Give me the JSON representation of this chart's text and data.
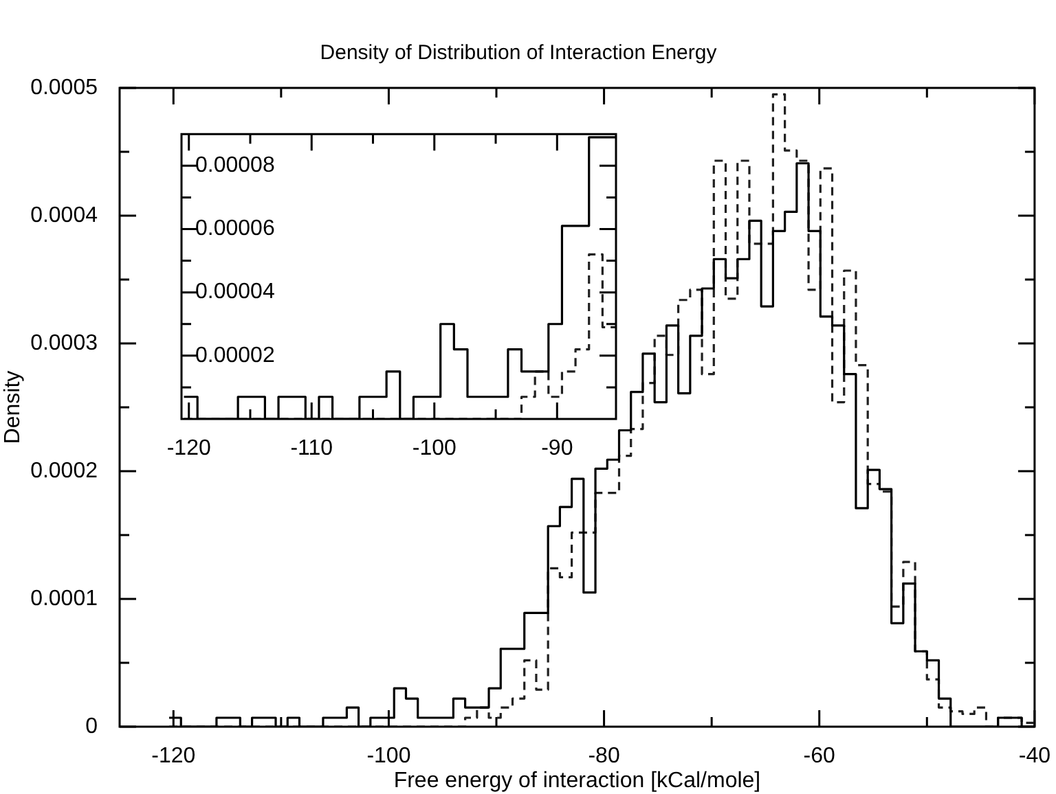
{
  "chart_data": [
    {
      "type": "histogram",
      "title": "Density of Distribution of Interaction Energy",
      "xlabel": "Free energy of interaction [kCal/mole]",
      "ylabel": "Density",
      "bins": [
        -120.4,
        -119.3,
        -118.2,
        -117.1,
        -116,
        -114.9,
        -113.8,
        -112.7,
        -111.6,
        -110.5,
        -109.4,
        -108.3,
        -107.2,
        -106.1,
        -105,
        -103.9,
        -102.8,
        -101.7,
        -100.6,
        -99.5,
        -98.4,
        -97.3,
        -96.2,
        -95.1,
        -94,
        -92.9,
        -91.8,
        -90.7,
        -89.6,
        -88.5,
        -87.4,
        -86.3,
        -85.2,
        -84.1,
        -83,
        -81.9,
        -80.8,
        -79.7,
        -78.6,
        -77.5,
        -76.4,
        -75.3,
        -74.2,
        -73.1,
        -72,
        -70.9,
        -69.8,
        -68.7,
        -67.6,
        -66.5,
        -65.4,
        -64.3,
        -63.2,
        -62.1,
        -61,
        -59.9,
        -58.8,
        -57.7,
        -56.6,
        -55.5,
        -54.4,
        -53.3,
        -52.2,
        -51.1,
        -50,
        -48.9,
        -47.8,
        -46.7,
        -45.6,
        -44.5,
        -43.4,
        -42.3,
        -41.2,
        -40.1
      ],
      "series": [
        {
          "color": "#000000",
          "line_style": "solid",
          "values": [
            7e-06,
            0,
            0,
            0,
            7e-06,
            7e-06,
            0,
            7e-06,
            7e-06,
            0,
            7e-06,
            0,
            0,
            7e-06,
            7e-06,
            1.5e-05,
            0,
            7e-06,
            7e-06,
            3e-05,
            2.2e-05,
            7e-06,
            7e-06,
            7e-06,
            2.2e-05,
            1.5e-05,
            1.5e-05,
            3e-05,
            6.1e-05,
            6.1e-05,
            8.9e-05,
            8.9e-05,
            0.000157,
            0.000172,
            0.000194,
            0.000105,
            0.000202,
            0.000209,
            0.000232,
            0.000262,
            0.000292,
            0.000254,
            0.000314,
            0.000261,
            0.000306,
            0.000343,
            0.000366,
            0.000351,
            0.000366,
            0.000396,
            0.000329,
            0.000388,
            0.000403,
            0.000441,
            0.000388,
            0.000321,
            0.000314,
            0.000276,
            0.000171,
            0.000201,
            0.000186,
            8.1e-05,
            0.000112,
            5.9e-05,
            5.2e-05,
            2.2e-05,
            0,
            0,
            0,
            0,
            7e-06,
            7e-06,
            0
          ]
        },
        {
          "color": "#202020",
          "line_style": "dashed",
          "values": [
            0,
            0,
            0,
            0,
            0,
            0,
            0,
            0,
            0,
            0,
            0,
            0,
            0,
            0,
            0,
            0,
            0,
            0,
            0,
            0,
            0,
            0,
            0,
            0,
            0,
            7e-06,
            1.5e-05,
            7e-06,
            1.5e-05,
            2.2e-05,
            5.2e-05,
            2.9e-05,
            0.000124,
            0.000117,
            0.000152,
            0.000152,
            0.000183,
            0.000183,
            0.000212,
            0.000233,
            0.000269,
            0.000306,
            0.000291,
            0.000334,
            0.000342,
            0.000276,
            0.000443,
            0.000335,
            0.000443,
            0.000378,
            0.000378,
            0.000495,
            0.000451,
            0.000443,
            0.000342,
            0.000437,
            0.000254,
            0.000357,
            0.000283,
            0.00019,
            0.000184,
            9.4e-05,
            0.000129,
            5.9e-05,
            3.7e-05,
            1.5e-05,
            1.2e-05,
            1e-05,
            1.5e-05,
            0,
            7e-06,
            7e-06,
            3e-06
          ]
        }
      ],
      "xlim": [
        -125,
        -40
      ],
      "ylim": [
        0,
        0.0005
      ],
      "xticks": [
        -120,
        {
          "value": -110,
          "label": null
        },
        -100,
        {
          "value": -90,
          "label": null
        },
        -80,
        {
          "value": -70,
          "label": null
        },
        -60,
        {
          "value": -50,
          "label": null
        },
        -40
      ],
      "yticks": [
        0,
        {
          "value": 5e-05,
          "label": null
        },
        0.0001,
        {
          "value": 0.00015,
          "label": null
        },
        0.0002,
        {
          "value": 0.00025,
          "label": null
        },
        0.0003,
        {
          "value": 0.00035,
          "label": null
        },
        0.0004,
        {
          "value": 0.00045,
          "label": null
        },
        0.0005
      ]
    },
    {
      "type": "histogram",
      "bins": [
        -120.4,
        -119.3,
        -118.2,
        -117.1,
        -116,
        -114.9,
        -113.8,
        -112.7,
        -111.6,
        -110.5,
        -109.4,
        -108.3,
        -107.2,
        -106.1,
        -105,
        -103.9,
        -102.8,
        -101.7,
        -100.6,
        -99.5,
        -98.4,
        -97.3,
        -96.2,
        -95.1,
        -94,
        -92.9,
        -91.8,
        -90.7,
        -89.6,
        -88.5,
        -87.4,
        -86.3,
        -85.2
      ],
      "series": [
        {
          "color": "#000000",
          "line_style": "solid",
          "values": [
            7e-06,
            0,
            0,
            0,
            7e-06,
            7e-06,
            0,
            7e-06,
            7e-06,
            0,
            7e-06,
            0,
            0,
            7e-06,
            7e-06,
            1.5e-05,
            0,
            7e-06,
            7e-06,
            3e-05,
            2.2e-05,
            7e-06,
            7e-06,
            7e-06,
            2.2e-05,
            1.5e-05,
            1.5e-05,
            3e-05,
            6.1e-05,
            6.1e-05,
            8.9e-05,
            8.9e-05
          ]
        },
        {
          "color": "#202020",
          "line_style": "dashed",
          "values": [
            0,
            0,
            0,
            0,
            0,
            0,
            0,
            0,
            0,
            0,
            0,
            0,
            0,
            0,
            0,
            0,
            0,
            0,
            0,
            0,
            0,
            0,
            0,
            0,
            0,
            7e-06,
            1.5e-05,
            7e-06,
            1.5e-05,
            2.2e-05,
            5.2e-05,
            2.9e-05
          ]
        }
      ],
      "xlim": [
        -120.6,
        -85.2
      ],
      "ylim": [
        0,
        9e-05
      ],
      "xticks": [
        -120,
        {
          "value": -115,
          "label": null
        },
        -110,
        {
          "value": -105,
          "label": null
        },
        -100,
        {
          "value": -95,
          "label": null
        },
        -90
      ],
      "yticks": [
        {
          "value": 1e-05,
          "label": null
        },
        {
          "value": 2e-05,
          "label": "0.00002"
        },
        {
          "value": 3e-05,
          "label": null
        },
        {
          "value": 4e-05,
          "label": "0.00004"
        },
        {
          "value": 5e-05,
          "label": null
        },
        {
          "value": 6e-05,
          "label": "0.00006"
        },
        {
          "value": 7e-05,
          "label": null
        },
        {
          "value": 8e-05,
          "label": "0.00008"
        }
      ]
    }
  ]
}
